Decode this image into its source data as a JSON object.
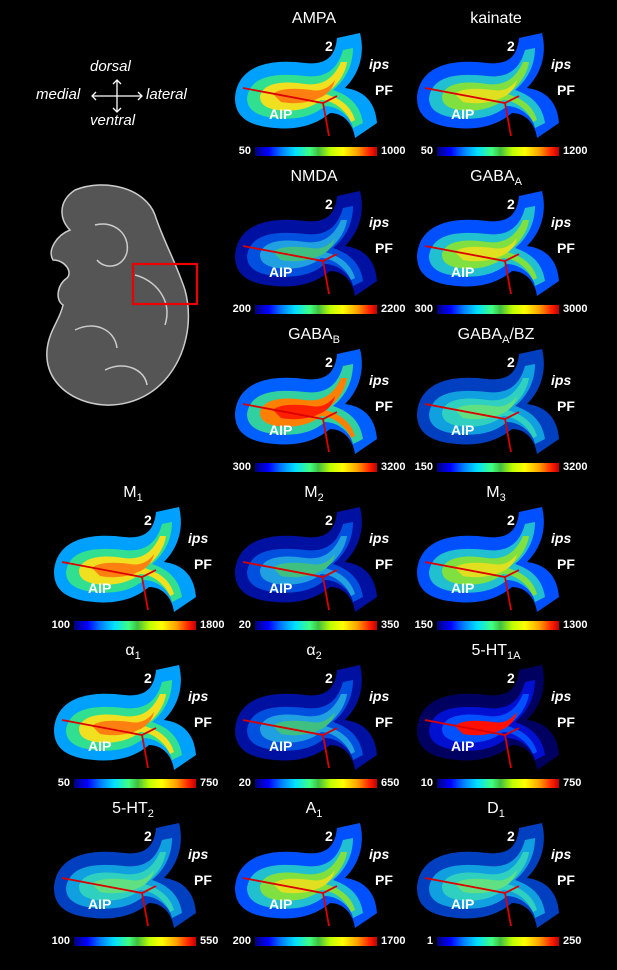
{
  "orientation": {
    "dorsal": "dorsal",
    "ventral": "ventral",
    "medial": "medial",
    "lateral": "lateral"
  },
  "labels": {
    "region1": "2",
    "sulcus": "ips",
    "region2": "PF",
    "region3": "AIP"
  },
  "panels": [
    {
      "title": "AMPA",
      "sub": "",
      "min": "50",
      "max": "1000",
      "style": "warm"
    },
    {
      "title": "kainate",
      "sub": "",
      "min": "50",
      "max": "1200",
      "style": "mid"
    },
    {
      "title": "NMDA",
      "sub": "",
      "min": "200",
      "max": "2200",
      "style": "noisy"
    },
    {
      "title": "GABA",
      "sub": "A",
      "min": "300",
      "max": "3000",
      "style": "mid"
    },
    {
      "title": "GABA",
      "sub": "B",
      "min": "300",
      "max": "3200",
      "style": "hot"
    },
    {
      "title": "GABA",
      "sub": "A",
      "extra": "/BZ",
      "min": "150",
      "max": "3200",
      "style": "cool"
    },
    {
      "title": "M",
      "sub": "1",
      "min": "100",
      "max": "1800",
      "style": "warm"
    },
    {
      "title": "M",
      "sub": "2",
      "min": "20",
      "max": "350",
      "style": "noisy"
    },
    {
      "title": "M",
      "sub": "3",
      "min": "150",
      "max": "1300",
      "style": "mid"
    },
    {
      "title": "α",
      "sub": "1",
      "min": "50",
      "max": "750",
      "style": "warm"
    },
    {
      "title": "α",
      "sub": "2",
      "min": "20",
      "max": "650",
      "style": "noisy"
    },
    {
      "title": "5-HT",
      "sub": "1A",
      "min": "10",
      "max": "750",
      "style": "hot1a"
    },
    {
      "title": "5-HT",
      "sub": "2",
      "min": "100",
      "max": "550",
      "style": "cool"
    },
    {
      "title": "A",
      "sub": "1",
      "min": "200",
      "max": "1700",
      "style": "mid"
    },
    {
      "title": "D",
      "sub": "1",
      "min": "1",
      "max": "250",
      "style": "cool"
    }
  ]
}
